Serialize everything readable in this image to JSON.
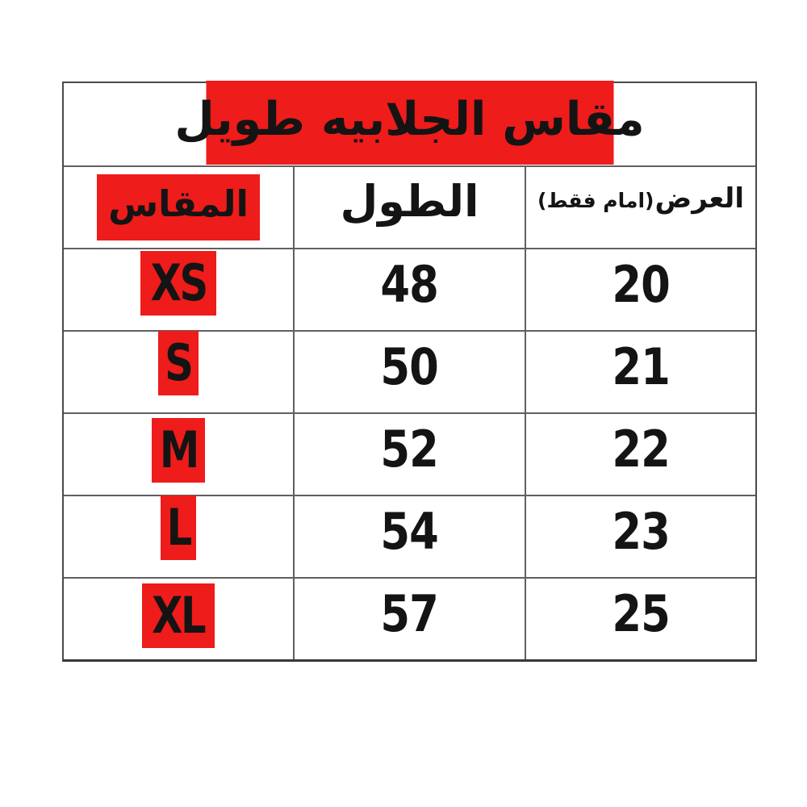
{
  "colors": {
    "highlight_red": "#ee1c1a",
    "grid_line": "#606060",
    "text": "#141414",
    "background": "#ffffff"
  },
  "table": {
    "title": "مقاس الجلابيه طويل",
    "headers": {
      "size": "المقاس",
      "length": "الطول",
      "width_main": "العرض",
      "width_sub": "(امام فقط)"
    },
    "rows": [
      {
        "size": "XS",
        "length": "48",
        "width": "20"
      },
      {
        "size": "S",
        "length": "50",
        "width": "21"
      },
      {
        "size": "M",
        "length": "52",
        "width": "22"
      },
      {
        "size": "L",
        "length": "54",
        "width": "23"
      },
      {
        "size": "XL",
        "length": "57",
        "width": "25"
      }
    ]
  },
  "chart_data": {
    "type": "table",
    "title": "مقاس الجلابيه طويل",
    "columns": [
      "المقاس",
      "الطول",
      "العرض(امام فقط)"
    ],
    "rows": [
      [
        "XS",
        "48",
        "20"
      ],
      [
        "S",
        "50",
        "21"
      ],
      [
        "M",
        "52",
        "22"
      ],
      [
        "L",
        "54",
        "23"
      ],
      [
        "XL",
        "57",
        "25"
      ]
    ]
  }
}
